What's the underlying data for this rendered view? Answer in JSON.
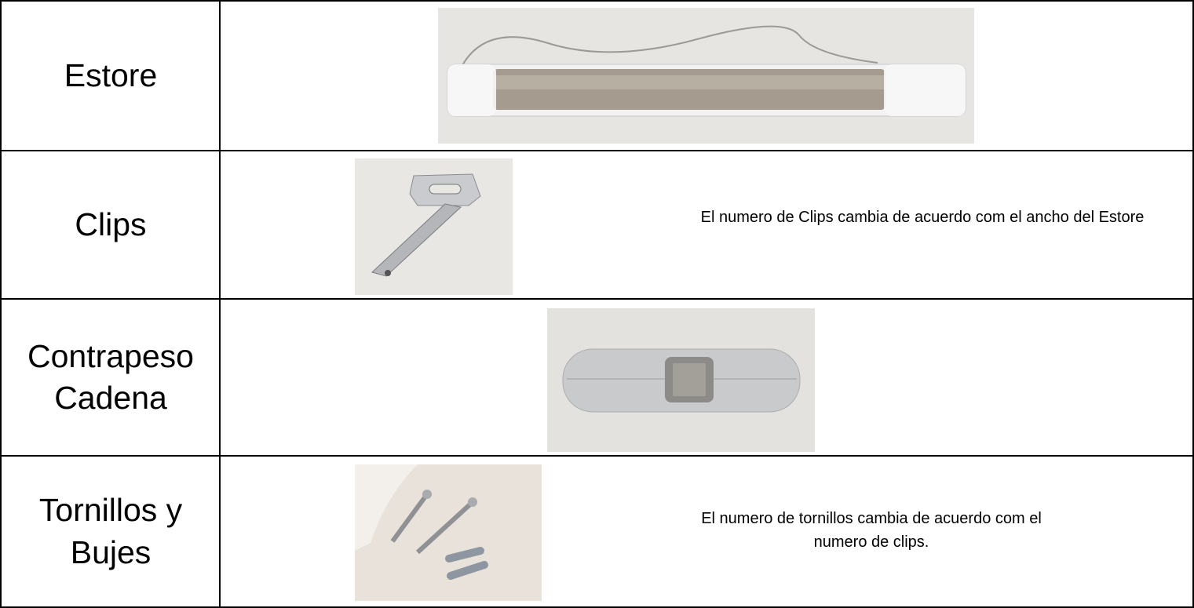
{
  "table": {
    "rows": [
      {
        "label": "Estore"
      },
      {
        "label": "Clips",
        "note": "El numero de Clips cambia de acuerdo com el ancho del Estore"
      },
      {
        "label": "Contrapeso Cadena"
      },
      {
        "label": "Tornillos y Bujes",
        "note": "El numero de tornillos cambia de acuerdo com el numero de clips."
      }
    ]
  }
}
